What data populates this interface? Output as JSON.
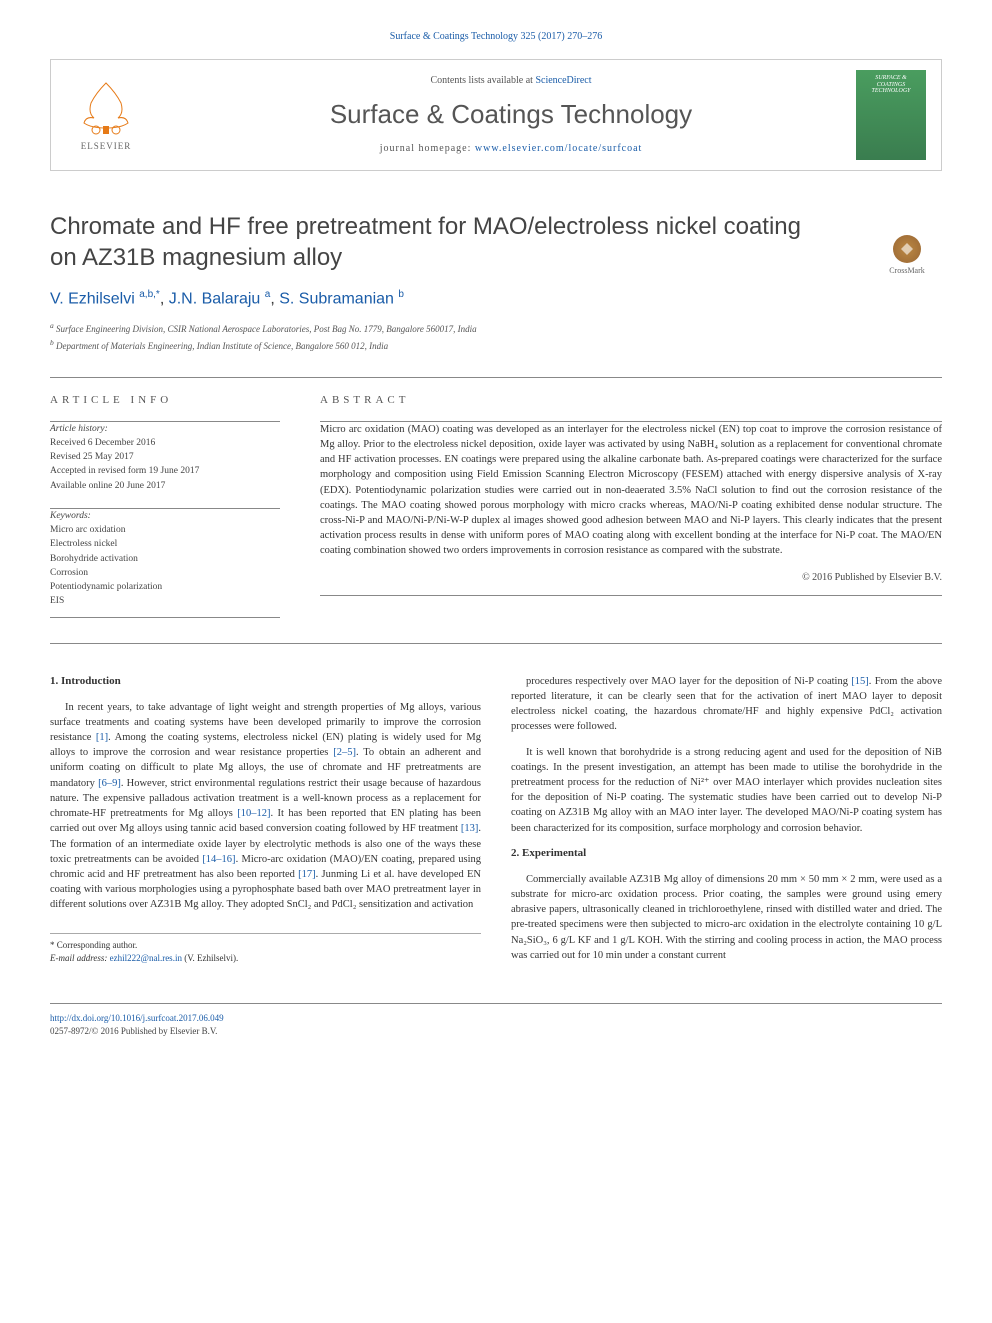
{
  "top_citation": "Surface & Coatings Technology 325 (2017) 270–276",
  "header": {
    "contents_prefix": "Contents lists available at ",
    "contents_link": "ScienceDirect",
    "journal_name": "Surface & Coatings Technology",
    "homepage_prefix": "journal homepage: ",
    "homepage_link": "www.elsevier.com/locate/surfcoat",
    "publisher": "ELSEVIER",
    "cover_text": "SURFACE & COATINGS TECHNOLOGY"
  },
  "crossmark_label": "CrossMark",
  "title": "Chromate and HF free pretreatment for MAO/electroless nickel coating on AZ31B magnesium alloy",
  "authors_html": "V. Ezhilselvi <sup>a,b,*</sup>, J.N. Balaraju <sup>a</sup>, S. Subramanian <sup>b</sup>",
  "authors": [
    {
      "name": "V. Ezhilselvi",
      "affil": "a,b,*"
    },
    {
      "name": "J.N. Balaraju",
      "affil": "a"
    },
    {
      "name": "S. Subramanian",
      "affil": "b"
    }
  ],
  "affiliations": [
    {
      "label": "a",
      "text": "Surface Engineering Division, CSIR National Aerospace Laboratories, Post Bag No. 1779, Bangalore 560017, India"
    },
    {
      "label": "b",
      "text": "Department of Materials Engineering, Indian Institute of Science, Bangalore 560 012, India"
    }
  ],
  "article_info": {
    "header": "ARTICLE INFO",
    "history_label": "Article history:",
    "history": [
      "Received 6 December 2016",
      "Revised 25 May 2017",
      "Accepted in revised form 19 June 2017",
      "Available online 20 June 2017"
    ],
    "keywords_label": "Keywords:",
    "keywords": [
      "Micro arc oxidation",
      "Electroless nickel",
      "Borohydride activation",
      "Corrosion",
      "Potentiodynamic polarization",
      "EIS"
    ]
  },
  "abstract": {
    "header": "ABSTRACT",
    "text": "Micro arc oxidation (MAO) coating was developed as an interlayer for the electroless nickel (EN) top coat to improve the corrosion resistance of Mg alloy. Prior to the electroless nickel deposition, oxide layer was activated by using NaBH₄ solution as a replacement for conventional chromate and HF activation processes. EN coatings were prepared using the alkaline carbonate bath. As-prepared coatings were characterized for the surface morphology and composition using Field Emission Scanning Electron Microscopy (FESEM) attached with energy dispersive analysis of X-ray (EDX). Potentiodynamic polarization studies were carried out in non-deaerated 3.5% NaCl solution to find out the corrosion resistance of the coatings. The MAO coating showed porous morphology with micro cracks whereas, MAO/Ni-P coating exhibited dense nodular structure. The cross-Ni-P and MAO/Ni-P/Ni-W-P duplex al images showed good adhesion between MAO and Ni-P layers. This clearly indicates that the present activation process results in dense with uniform pores of MAO coating along with excellent bonding at the interface for Ni-P coat. The MAO/EN coating combination showed two orders improvements in corrosion resistance as compared with the substrate.",
    "copyright": "© 2016 Published by Elsevier B.V."
  },
  "body": {
    "intro_heading": "1. Introduction",
    "intro_p1": "In recent years, to take advantage of light weight and strength properties of Mg alloys, various surface treatments and coating systems have been developed primarily to improve the corrosion resistance [1]. Among the coating systems, electroless nickel (EN) plating is widely used for Mg alloys to improve the corrosion and wear resistance properties [2–5]. To obtain an adherent and uniform coating on difficult to plate Mg alloys, the use of chromate and HF pretreatments are mandatory [6–9]. However, strict environmental regulations restrict their usage because of hazardous nature. The expensive palladous activation treatment is a well-known process as a replacement for chromate-HF pretreatments for Mg alloys [10–12]. It has been reported that EN plating has been carried out over Mg alloys using tannic acid based conversion coating followed by HF treatment [13]. The formation of an intermediate oxide layer by electrolytic methods is also one of the ways these toxic pretreatments can be avoided [14–16]. Micro-arc oxidation (MAO)/EN coating, prepared using chromic acid and HF pretreatment has also been reported [17]. Junming Li et al. have developed EN coating with various morphologies using a pyrophosphate based bath over MAO pretreatment layer in different solutions over AZ31B Mg alloy. They adopted SnCl₂ and PdCl₂ sensitization and activation",
    "col2_p1": "procedures respectively over MAO layer for the deposition of Ni-P coating [15]. From the above reported literature, it can be clearly seen that for the activation of inert MAO layer to deposit electroless nickel coating, the hazardous chromate/HF and highly expensive PdCl₂ activation processes were followed.",
    "col2_p2": "It is well known that borohydride is a strong reducing agent and used for the deposition of NiB coatings. In the present investigation, an attempt has been made to utilise the borohydride in the pretreatment process for the reduction of Ni²⁺ over MAO interlayer which provides nucleation sites for the deposition of Ni-P coating. The systematic studies have been carried out to develop Ni-P coating on AZ31B Mg alloy with an MAO inter layer. The developed MAO/Ni-P coating system has been characterized for its composition, surface morphology and corrosion behavior.",
    "exp_heading": "2. Experimental",
    "exp_p1": "Commercially available AZ31B Mg alloy of dimensions 20 mm × 50 mm × 2 mm, were used as a substrate for micro-arc oxidation process. Prior coating, the samples were ground using emery abrasive papers, ultrasonically cleaned in trichloroethylene, rinsed with distilled water and dried. The pre-treated specimens were then subjected to micro-arc oxidation in the electrolyte containing 10 g/L Na₂SiO₃, 6 g/L KF and 1 g/L KOH. With the stirring and cooling process in action, the MAO process was carried out for 10 min under a constant current"
  },
  "footer": {
    "corr_label": "* Corresponding author.",
    "email_label": "E-mail address: ",
    "email": "ezhil222@nal.res.in",
    "email_name": " (V. Ezhilselvi).",
    "doi": "http://dx.doi.org/10.1016/j.surfcoat.2017.06.049",
    "issn": "0257-8972/© 2016 Published by Elsevier B.V."
  },
  "colors": {
    "link": "#1a5ca8",
    "text": "#333333",
    "muted": "#555555",
    "border": "#888888",
    "cover_bg": "#4a9d5f"
  }
}
